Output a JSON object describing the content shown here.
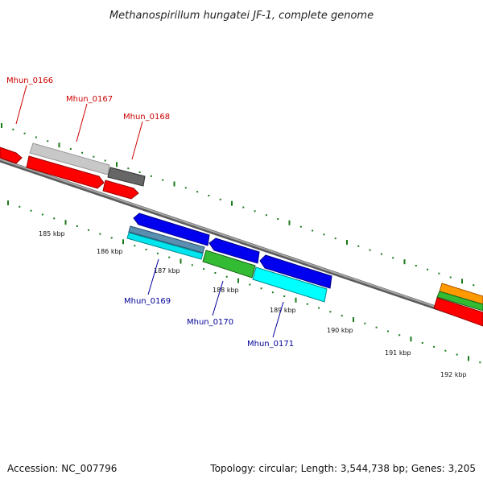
{
  "title": "Methanospirillum hungatei JF-1, complete genome",
  "footer": {
    "accession": "Accession: NC_007796",
    "summary": "Topology: circular; Length: 3,544,738 bp; Genes: 3,205"
  },
  "ticks": [
    "185 kbp",
    "186 kbp",
    "187 kbp",
    "188 kbp",
    "189 kbp",
    "190 kbp",
    "191 kbp",
    "192 kbp"
  ],
  "genes_forward": [
    {
      "id": "Mhun_0166",
      "label": "Mhun_0166"
    },
    {
      "id": "Mhun_0167",
      "label": "Mhun_0167"
    },
    {
      "id": "Mhun_0168",
      "label": "Mhun_0168"
    }
  ],
  "genes_reverse": [
    {
      "id": "Mhun_0169",
      "label": "Mhun_0169"
    },
    {
      "id": "Mhun_0170",
      "label": "Mhun_0170"
    },
    {
      "id": "Mhun_0171",
      "label": "Mhun_0171"
    }
  ],
  "colors": {
    "forward_label": "#cc0000",
    "reverse_label": "#000099",
    "tick": "#1a7a1a",
    "backbone": "#808080",
    "red": "#ff0000",
    "blue": "#0000ee",
    "cyan": "#00e5ee",
    "green": "#33bb33",
    "orange": "#ff9900",
    "light_gray": "#c8c8c8",
    "dark_gray": "#666666",
    "steel": "#5a8fb0"
  }
}
